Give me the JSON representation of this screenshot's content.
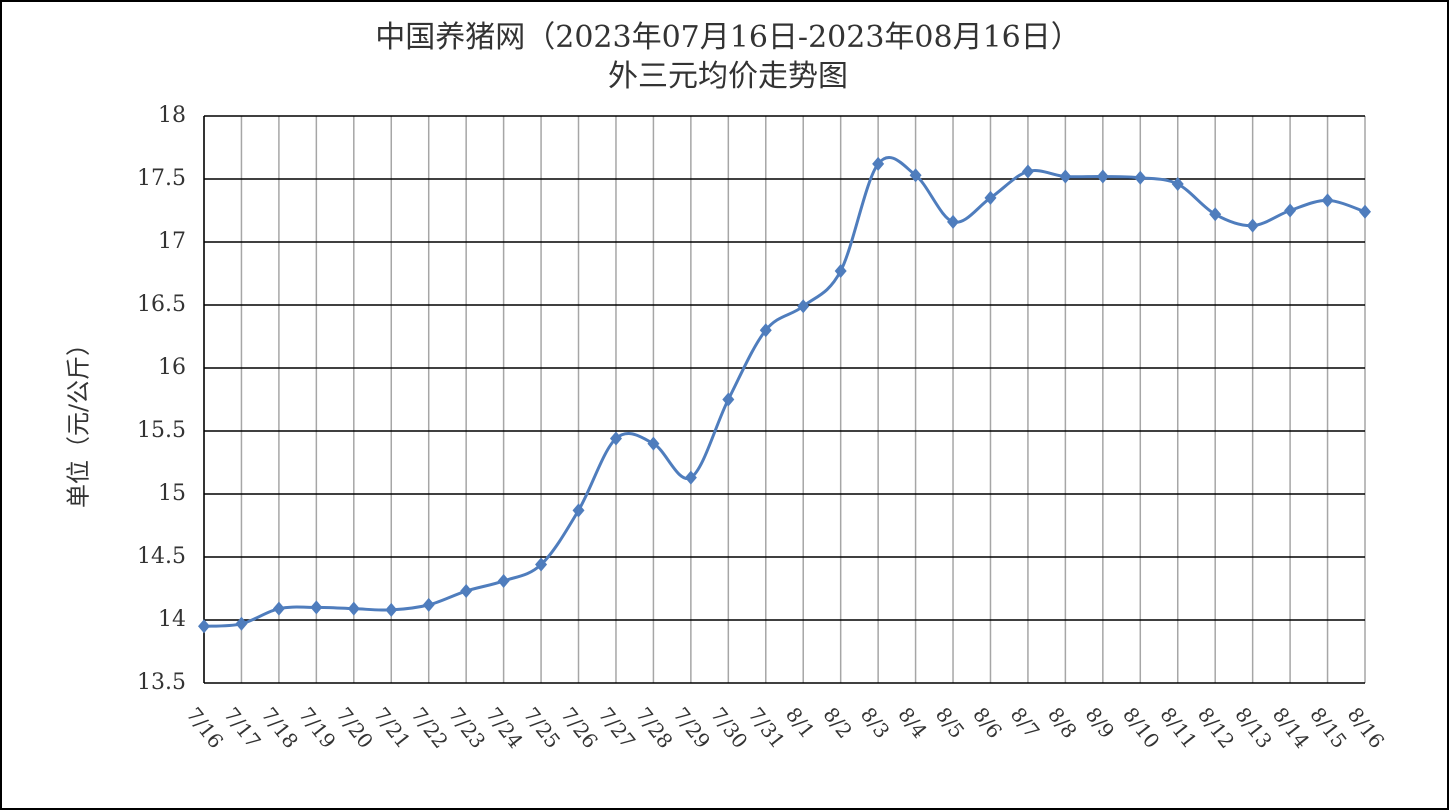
{
  "chart_data": {
    "type": "line",
    "title": "中国养猪网（2023年07月16日-2023年08月16日）",
    "subtitle": "外三元均价走势图",
    "y_label": "单位（元/公斤）",
    "categories": [
      "7/16",
      "7/17",
      "7/18",
      "7/19",
      "7/20",
      "7/21",
      "7/22",
      "7/23",
      "7/24",
      "7/25",
      "7/26",
      "7/27",
      "7/28",
      "7/29",
      "7/30",
      "7/31",
      "8/1",
      "8/2",
      "8/3",
      "8/4",
      "8/5",
      "8/6",
      "8/7",
      "8/8",
      "8/9",
      "8/10",
      "8/11",
      "8/12",
      "8/13",
      "8/14",
      "8/15",
      "8/16"
    ],
    "series": [
      {
        "name": "外三元均价",
        "color": "#4f7dbd",
        "values": [
          13.95,
          13.97,
          14.09,
          14.1,
          14.09,
          14.08,
          14.12,
          14.23,
          14.31,
          14.44,
          14.87,
          15.44,
          15.4,
          15.13,
          15.75,
          16.3,
          16.49,
          16.77,
          17.62,
          17.53,
          17.16,
          17.35,
          17.56,
          17.52,
          17.52,
          17.51,
          17.46,
          17.22,
          17.13,
          17.25,
          17.33,
          17.24
        ]
      }
    ],
    "ylim": [
      13.5,
      18
    ],
    "yticks": [
      13.5,
      14,
      14.5,
      15,
      15.5,
      16,
      16.5,
      17,
      17.5,
      18
    ],
    "grid": true
  }
}
